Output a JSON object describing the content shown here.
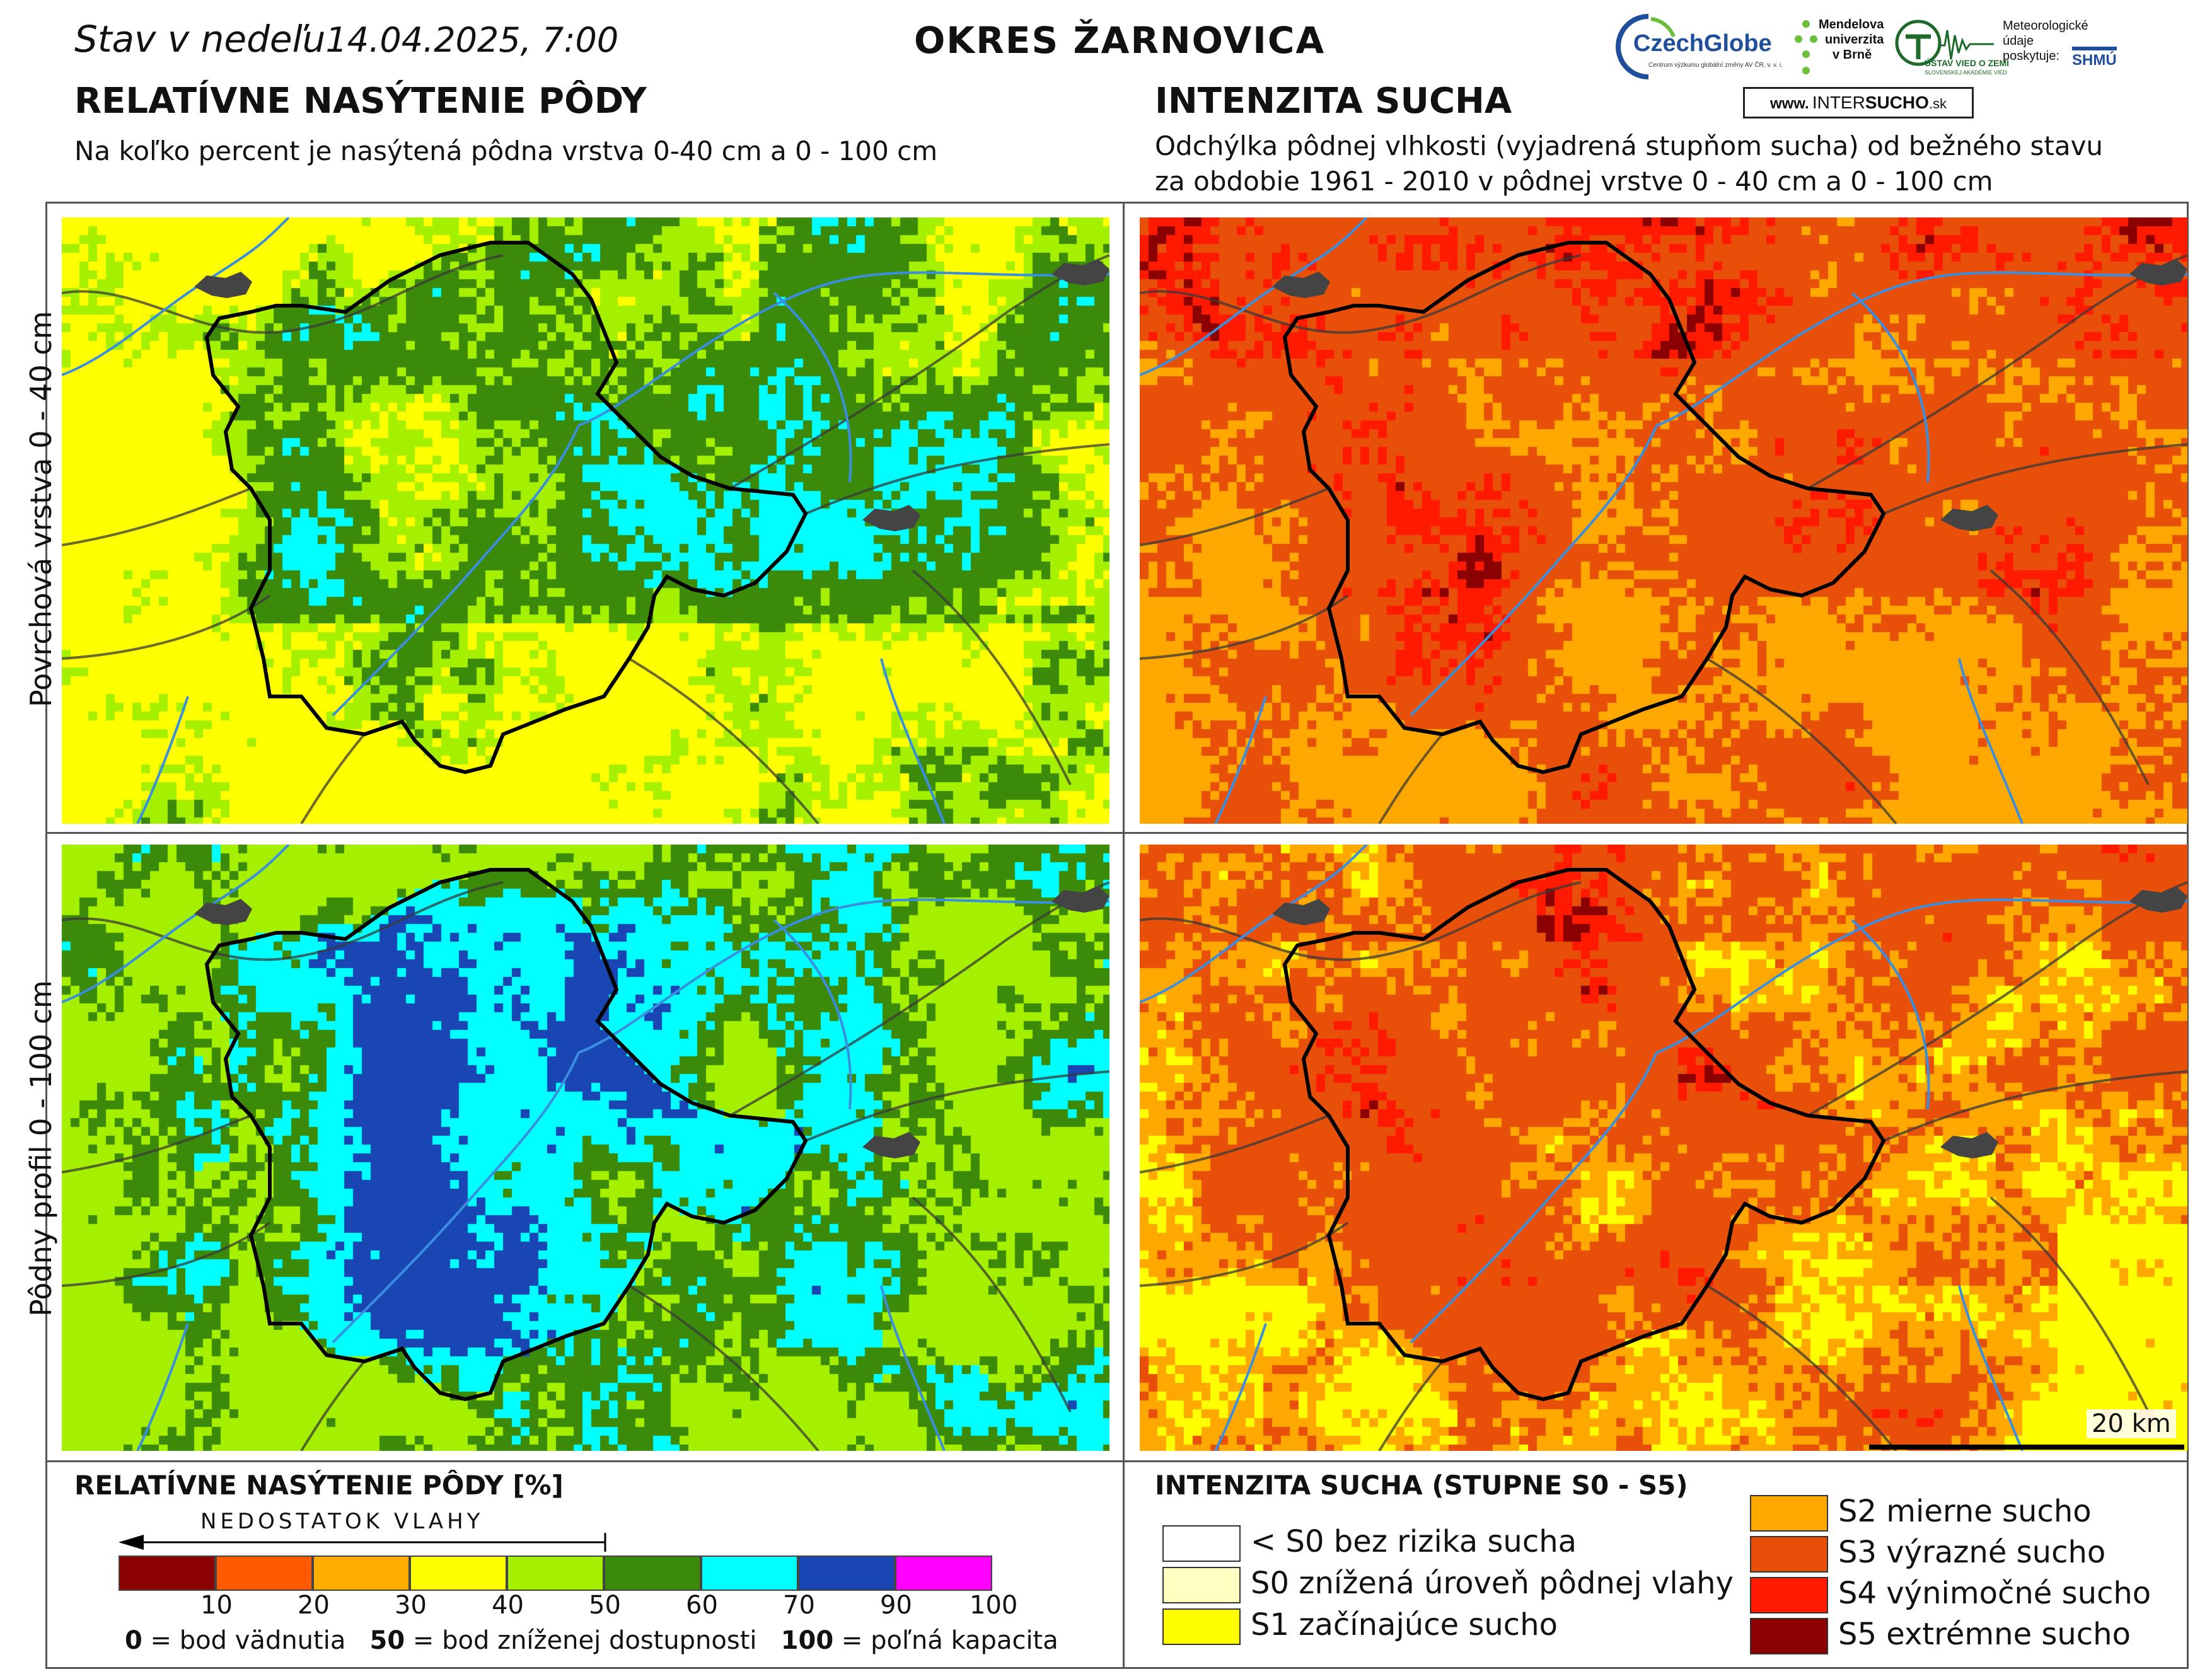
{
  "header": {
    "date_prefix": "Stav v nedeľu",
    "date_value": "14.04.2025, 7:00",
    "district": "OKRES  ŽARNOVICA"
  },
  "left_section": {
    "title": "RELATÍVNE NASÝTENIE PÔDY",
    "subtitle": "Na koľko percent je nasýtená pôdna vrstva 0-40 cm a 0 - 100 cm"
  },
  "right_section": {
    "title": "INTENZITA SUCHA",
    "subtitle_line1": "Odchýlka pôdnej vlhkosti (vyjadrená stupňom sucha) od bežného stavu",
    "subtitle_line2": "za obdobie 1961 - 2010 v pôdnej vrstve 0 - 40 cm a 0 - 100 cm"
  },
  "row_labels": {
    "top": "Povrchová vrstva 0 - 40 cm",
    "bottom": "Pôdny profil 0 - 100 cm"
  },
  "logos": {
    "czechglobe": "CzechGlobe",
    "czechglobe_sub": "Centrum výzkumu globální změny AV ČR, v. v. i.",
    "mendel_line1": "Mendelova",
    "mendel_line2": "univerzita",
    "mendel_line3": "v Brně",
    "uvz": "ÚSTAV VIED O ZEMI",
    "uvz_sub": "SLOVENSKEJ AKADÉMIE VIED",
    "meteo_line1": "Meteorologické",
    "meteo_line2": "údaje",
    "meteo_line3": "poskytuje:",
    "shmu": "SHMÚ",
    "intersucho_prefix": "www.",
    "intersucho_a": "INTER",
    "intersucho_b": "SUCHO",
    "intersucho_c": ".sk"
  },
  "scale_bar": {
    "label": "20 km"
  },
  "saturation_legend": {
    "title": "RELATÍVNE NASÝTENIE PÔDY [%]",
    "arrow_label": "NEDOSTATOK VLAHY",
    "colors": [
      "#8b0000",
      "#ff5a00",
      "#ffae00",
      "#ffff00",
      "#a5f000",
      "#3c8a0a",
      "#00ffff",
      "#1a46b4",
      "#ff00ff"
    ],
    "ticks": [
      "10",
      "20",
      "30",
      "40",
      "50",
      "60",
      "70",
      "90",
      "100"
    ],
    "note_0_key": "0",
    "note_0_text": " = bod vädnutia",
    "note_50_key": "50",
    "note_50_text": " = bod zníženej dostupnosti",
    "note_100_key": "100",
    "note_100_text": " = poľná kapacita"
  },
  "drought_legend": {
    "title": "INTENZITA SUCHA (STUPNE S0 - S5)",
    "items": [
      {
        "color": "#ffffff",
        "label": "< S0 bez rizika sucha"
      },
      {
        "color": "#ffffc0",
        "label": "S0 znížená úroveň pôdnej vlahy"
      },
      {
        "color": "#ffff00",
        "label": "S1 začínajúce sucho"
      },
      {
        "color": "#ffa800",
        "label": "S2 mierne sucho"
      },
      {
        "color": "#e8500a",
        "label": "S3 výrazné sucho"
      },
      {
        "color": "#ff1a00",
        "label": "S4 výnimočné sucho"
      },
      {
        "color": "#8b0000",
        "label": "S5 extrémne sucho"
      }
    ]
  }
}
